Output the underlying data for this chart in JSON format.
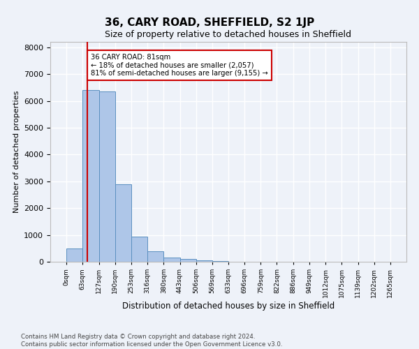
{
  "title": "36, CARY ROAD, SHEFFIELD, S2 1JP",
  "subtitle": "Size of property relative to detached houses in Sheffield",
  "xlabel": "Distribution of detached houses by size in Sheffield",
  "ylabel": "Number of detached properties",
  "bin_edges": [
    0,
    63,
    127,
    190,
    253,
    316,
    380,
    443,
    506,
    569,
    633,
    696,
    759,
    822,
    886,
    949,
    1012,
    1075,
    1139,
    1202,
    1265
  ],
  "bar_heights": [
    500,
    6400,
    6350,
    2900,
    950,
    400,
    150,
    110,
    55,
    20,
    10,
    5,
    3,
    2,
    1,
    1,
    0,
    0,
    0,
    0
  ],
  "bar_color": "#aec6e8",
  "bar_edgecolor": "#5a8fc0",
  "vline_x": 81,
  "vline_color": "#cc0000",
  "annotation_text": "36 CARY ROAD: 81sqm\n← 18% of detached houses are smaller (2,057)\n81% of semi-detached houses are larger (9,155) →",
  "annotation_box_color": "#cc0000",
  "ylim": [
    0,
    8200
  ],
  "yticks": [
    0,
    1000,
    2000,
    3000,
    4000,
    5000,
    6000,
    7000,
    8000
  ],
  "background_color": "#eef2f9",
  "grid_color": "#ffffff",
  "footer_line1": "Contains HM Land Registry data © Crown copyright and database right 2024.",
  "footer_line2": "Contains public sector information licensed under the Open Government Licence v3.0."
}
